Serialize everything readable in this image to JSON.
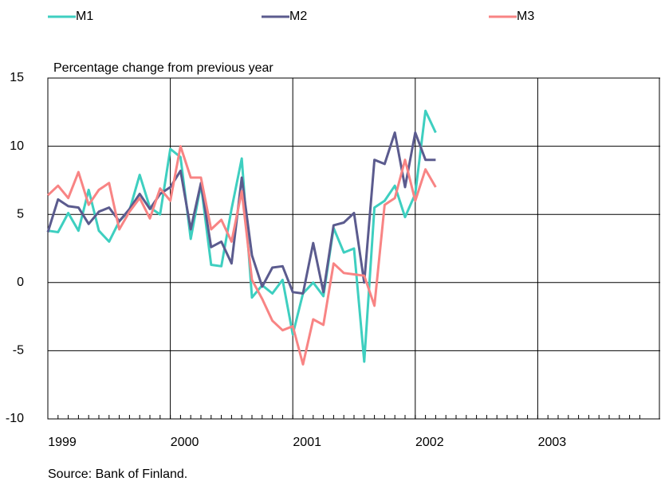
{
  "chart_data": {
    "type": "line",
    "title": "Percentage change from previous year",
    "source": "Source:  Bank of Finland.",
    "x": [
      1999.0,
      1999.0833,
      1999.1667,
      1999.25,
      1999.3333,
      1999.4167,
      1999.5,
      1999.5833,
      1999.6667,
      1999.75,
      1999.8333,
      1999.9167,
      2000.0,
      2000.0833,
      2000.1667,
      2000.25,
      2000.3333,
      2000.4167,
      2000.5,
      2000.5833,
      2000.6667,
      2000.75,
      2000.8333,
      2000.9167,
      2001.0,
      2001.0833,
      2001.1667,
      2001.25,
      2001.3333,
      2001.4167,
      2001.5,
      2001.5833,
      2001.6667,
      2001.75,
      2001.8333,
      2001.9167,
      2002.0,
      2002.0833,
      2002.1667
    ],
    "series": [
      {
        "name": "M1",
        "color": "#3ecfc0",
        "values": [
          3.8,
          3.7,
          5.1,
          3.8,
          6.8,
          3.8,
          3.0,
          4.5,
          5.3,
          7.9,
          5.5,
          5.0,
          9.8,
          9.2,
          3.2,
          7.2,
          1.3,
          1.2,
          5.4,
          9.1,
          -1.1,
          -0.2,
          -0.8,
          0.2,
          -3.8,
          -0.8,
          0.0,
          -1.0,
          4.0,
          2.2,
          2.5,
          -5.8,
          5.5,
          6.0,
          7.1,
          4.8,
          6.5,
          12.6,
          11.0
        ]
      },
      {
        "name": "M2",
        "color": "#5b5b8e",
        "values": [
          3.7,
          6.1,
          5.6,
          5.5,
          4.3,
          5.2,
          5.5,
          4.5,
          5.4,
          6.5,
          5.4,
          6.5,
          7.0,
          8.2,
          3.9,
          7.3,
          2.6,
          3.0,
          1.4,
          7.7,
          2.0,
          -0.3,
          1.1,
          1.2,
          -0.7,
          -0.8,
          2.9,
          -0.7,
          4.2,
          4.4,
          5.1,
          0.0,
          9.0,
          8.7,
          11.0,
          7.0,
          11.0,
          9.0,
          9.0
        ]
      },
      {
        "name": "M3",
        "color": "#f88484",
        "values": [
          6.4,
          7.1,
          6.2,
          8.1,
          5.7,
          6.8,
          7.3,
          3.9,
          5.2,
          6.2,
          4.7,
          6.9,
          6.0,
          10.0,
          7.7,
          7.7,
          3.9,
          4.6,
          3.0,
          6.7,
          0.2,
          -1.2,
          -2.8,
          -3.5,
          -3.2,
          -6.0,
          -2.7,
          -3.1,
          1.4,
          0.7,
          0.6,
          0.5,
          -1.7,
          5.7,
          6.2,
          9.0,
          6.0,
          8.3,
          7.0
        ]
      }
    ],
    "xlim": [
      1999,
      2004
    ],
    "xticks": [
      1999,
      2000,
      2001,
      2002,
      2003
    ],
    "ylim": [
      -10,
      15
    ],
    "yticks": [
      -10,
      -5,
      0,
      5,
      10,
      15
    ],
    "grid": true
  }
}
